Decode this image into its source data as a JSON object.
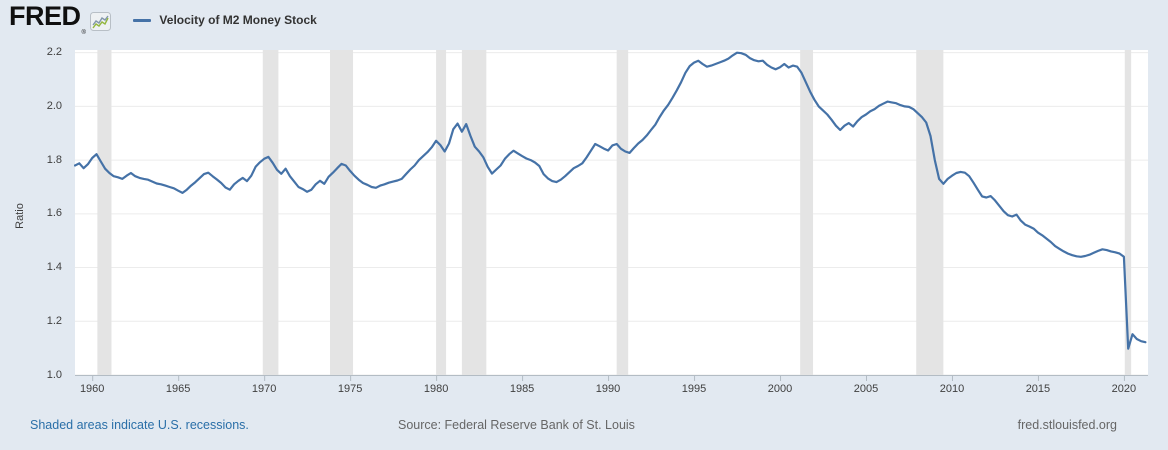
{
  "header": {
    "logo_text": "FRED",
    "registered_mark": "®",
    "legend_label": "Velocity of M2 Money Stock"
  },
  "footer": {
    "recession_note": "Shaded areas indicate U.S. recessions.",
    "source_text": "Source: Federal Reserve Bank of St. Louis",
    "site_url": "fred.stlouisfed.org"
  },
  "chart_data": {
    "type": "line",
    "title": "Velocity of M2 Money Stock",
    "xlabel": "",
    "ylabel": "Ratio",
    "series_name": "Velocity of M2 Money Stock",
    "grid": "horizontal",
    "legend_position": "top-left",
    "xlim": [
      1959.0,
      2021.4
    ],
    "ylim": [
      1.0,
      2.21
    ],
    "x_ticks": [
      {
        "v": 1960,
        "label": "1960"
      },
      {
        "v": 1965,
        "label": "1965"
      },
      {
        "v": 1970,
        "label": "1970"
      },
      {
        "v": 1975,
        "label": "1975"
      },
      {
        "v": 1980,
        "label": "1980"
      },
      {
        "v": 1985,
        "label": "1985"
      },
      {
        "v": 1990,
        "label": "1990"
      },
      {
        "v": 1995,
        "label": "1995"
      },
      {
        "v": 2000,
        "label": "2000"
      },
      {
        "v": 2005,
        "label": "2005"
      },
      {
        "v": 2010,
        "label": "2010"
      },
      {
        "v": 2015,
        "label": "2015"
      },
      {
        "v": 2020,
        "label": "2020"
      }
    ],
    "y_ticks": [
      {
        "v": 1.0,
        "label": "1.0"
      },
      {
        "v": 1.2,
        "label": "1.2"
      },
      {
        "v": 1.4,
        "label": "1.4"
      },
      {
        "v": 1.6,
        "label": "1.6"
      },
      {
        "v": 1.8,
        "label": "1.8"
      },
      {
        "v": 2.0,
        "label": "2.0"
      },
      {
        "v": 2.2,
        "label": "2.2"
      }
    ],
    "recessions": [
      [
        1960.3,
        1961.12
      ],
      [
        1969.92,
        1970.83
      ],
      [
        1973.83,
        1975.17
      ],
      [
        1980.0,
        1980.58
      ],
      [
        1981.5,
        1982.92
      ],
      [
        1990.5,
        1991.17
      ],
      [
        2001.17,
        2001.92
      ],
      [
        2007.92,
        2009.5
      ],
      [
        2020.05,
        2020.42
      ]
    ],
    "colors": {
      "line": "#4572a7",
      "plot_bg": "#ffffff",
      "recession_band": "#e4e4e4",
      "gridline": "#ececec",
      "axis": "#b3bcc4",
      "canvas_bg": "#e2e9f1",
      "link": "#2a6fa8",
      "muted_text": "#666666"
    },
    "points": [
      [
        1959.0,
        1.78
      ],
      [
        1959.25,
        1.788
      ],
      [
        1959.5,
        1.77
      ],
      [
        1959.75,
        1.785
      ],
      [
        1960.0,
        1.808
      ],
      [
        1960.25,
        1.822
      ],
      [
        1960.5,
        1.795
      ],
      [
        1960.75,
        1.768
      ],
      [
        1961.0,
        1.752
      ],
      [
        1961.25,
        1.74
      ],
      [
        1961.5,
        1.736
      ],
      [
        1961.75,
        1.73
      ],
      [
        1962.0,
        1.742
      ],
      [
        1962.25,
        1.752
      ],
      [
        1962.5,
        1.74
      ],
      [
        1962.75,
        1.734
      ],
      [
        1963.0,
        1.73
      ],
      [
        1963.25,
        1.727
      ],
      [
        1963.5,
        1.72
      ],
      [
        1963.75,
        1.713
      ],
      [
        1964.0,
        1.71
      ],
      [
        1964.25,
        1.705
      ],
      [
        1964.5,
        1.7
      ],
      [
        1964.75,
        1.695
      ],
      [
        1965.0,
        1.686
      ],
      [
        1965.25,
        1.678
      ],
      [
        1965.5,
        1.69
      ],
      [
        1965.75,
        1.705
      ],
      [
        1966.0,
        1.718
      ],
      [
        1966.25,
        1.733
      ],
      [
        1966.5,
        1.748
      ],
      [
        1966.75,
        1.753
      ],
      [
        1967.0,
        1.74
      ],
      [
        1967.25,
        1.728
      ],
      [
        1967.5,
        1.715
      ],
      [
        1967.75,
        1.698
      ],
      [
        1968.0,
        1.69
      ],
      [
        1968.25,
        1.71
      ],
      [
        1968.5,
        1.723
      ],
      [
        1968.75,
        1.734
      ],
      [
        1969.0,
        1.722
      ],
      [
        1969.25,
        1.742
      ],
      [
        1969.5,
        1.775
      ],
      [
        1969.75,
        1.792
      ],
      [
        1970.0,
        1.805
      ],
      [
        1970.25,
        1.812
      ],
      [
        1970.5,
        1.79
      ],
      [
        1970.75,
        1.764
      ],
      [
        1971.0,
        1.749
      ],
      [
        1971.25,
        1.768
      ],
      [
        1971.5,
        1.74
      ],
      [
        1971.75,
        1.72
      ],
      [
        1972.0,
        1.7
      ],
      [
        1972.25,
        1.692
      ],
      [
        1972.5,
        1.682
      ],
      [
        1972.75,
        1.69
      ],
      [
        1973.0,
        1.71
      ],
      [
        1973.25,
        1.723
      ],
      [
        1973.5,
        1.712
      ],
      [
        1973.75,
        1.738
      ],
      [
        1974.0,
        1.753
      ],
      [
        1974.25,
        1.77
      ],
      [
        1974.5,
        1.786
      ],
      [
        1974.75,
        1.78
      ],
      [
        1975.0,
        1.76
      ],
      [
        1975.25,
        1.742
      ],
      [
        1975.5,
        1.727
      ],
      [
        1975.75,
        1.715
      ],
      [
        1976.0,
        1.708
      ],
      [
        1976.25,
        1.7
      ],
      [
        1976.5,
        1.697
      ],
      [
        1976.75,
        1.705
      ],
      [
        1977.0,
        1.71
      ],
      [
        1977.25,
        1.716
      ],
      [
        1977.5,
        1.72
      ],
      [
        1977.75,
        1.724
      ],
      [
        1978.0,
        1.73
      ],
      [
        1978.25,
        1.748
      ],
      [
        1978.5,
        1.765
      ],
      [
        1978.75,
        1.78
      ],
      [
        1979.0,
        1.8
      ],
      [
        1979.25,
        1.815
      ],
      [
        1979.5,
        1.83
      ],
      [
        1979.75,
        1.848
      ],
      [
        1980.0,
        1.872
      ],
      [
        1980.25,
        1.856
      ],
      [
        1980.5,
        1.832
      ],
      [
        1980.75,
        1.862
      ],
      [
        1981.0,
        1.915
      ],
      [
        1981.25,
        1.936
      ],
      [
        1981.5,
        1.906
      ],
      [
        1981.75,
        1.934
      ],
      [
        1982.0,
        1.89
      ],
      [
        1982.25,
        1.85
      ],
      [
        1982.5,
        1.832
      ],
      [
        1982.75,
        1.81
      ],
      [
        1983.0,
        1.775
      ],
      [
        1983.25,
        1.75
      ],
      [
        1983.5,
        1.765
      ],
      [
        1983.75,
        1.78
      ],
      [
        1984.0,
        1.805
      ],
      [
        1984.25,
        1.822
      ],
      [
        1984.5,
        1.835
      ],
      [
        1984.75,
        1.825
      ],
      [
        1985.0,
        1.815
      ],
      [
        1985.25,
        1.806
      ],
      [
        1985.5,
        1.8
      ],
      [
        1985.75,
        1.791
      ],
      [
        1986.0,
        1.778
      ],
      [
        1986.25,
        1.748
      ],
      [
        1986.5,
        1.732
      ],
      [
        1986.75,
        1.722
      ],
      [
        1987.0,
        1.718
      ],
      [
        1987.25,
        1.727
      ],
      [
        1987.5,
        1.74
      ],
      [
        1987.75,
        1.755
      ],
      [
        1988.0,
        1.77
      ],
      [
        1988.25,
        1.778
      ],
      [
        1988.5,
        1.788
      ],
      [
        1988.75,
        1.81
      ],
      [
        1989.0,
        1.835
      ],
      [
        1989.25,
        1.86
      ],
      [
        1989.5,
        1.852
      ],
      [
        1989.75,
        1.843
      ],
      [
        1990.0,
        1.836
      ],
      [
        1990.25,
        1.855
      ],
      [
        1990.5,
        1.86
      ],
      [
        1990.75,
        1.842
      ],
      [
        1991.0,
        1.832
      ],
      [
        1991.25,
        1.827
      ],
      [
        1991.5,
        1.845
      ],
      [
        1991.75,
        1.862
      ],
      [
        1992.0,
        1.875
      ],
      [
        1992.25,
        1.892
      ],
      [
        1992.5,
        1.912
      ],
      [
        1992.75,
        1.932
      ],
      [
        1993.0,
        1.96
      ],
      [
        1993.25,
        1.985
      ],
      [
        1993.5,
        2.006
      ],
      [
        1993.75,
        2.032
      ],
      [
        1994.0,
        2.06
      ],
      [
        1994.25,
        2.09
      ],
      [
        1994.5,
        2.125
      ],
      [
        1994.75,
        2.15
      ],
      [
        1995.0,
        2.163
      ],
      [
        1995.25,
        2.17
      ],
      [
        1995.5,
        2.158
      ],
      [
        1995.75,
        2.148
      ],
      [
        1996.0,
        2.152
      ],
      [
        1996.25,
        2.158
      ],
      [
        1996.5,
        2.164
      ],
      [
        1996.75,
        2.17
      ],
      [
        1997.0,
        2.178
      ],
      [
        1997.25,
        2.19
      ],
      [
        1997.5,
        2.2
      ],
      [
        1997.75,
        2.198
      ],
      [
        1998.0,
        2.192
      ],
      [
        1998.25,
        2.18
      ],
      [
        1998.5,
        2.172
      ],
      [
        1998.75,
        2.168
      ],
      [
        1999.0,
        2.17
      ],
      [
        1999.25,
        2.155
      ],
      [
        1999.5,
        2.145
      ],
      [
        1999.75,
        2.138
      ],
      [
        2000.0,
        2.146
      ],
      [
        2000.25,
        2.158
      ],
      [
        2000.5,
        2.145
      ],
      [
        2000.75,
        2.152
      ],
      [
        2001.0,
        2.148
      ],
      [
        2001.25,
        2.125
      ],
      [
        2001.5,
        2.09
      ],
      [
        2001.75,
        2.055
      ],
      [
        2002.0,
        2.025
      ],
      [
        2002.25,
        2.0
      ],
      [
        2002.5,
        1.985
      ],
      [
        2002.75,
        1.97
      ],
      [
        2003.0,
        1.95
      ],
      [
        2003.25,
        1.928
      ],
      [
        2003.5,
        1.912
      ],
      [
        2003.75,
        1.928
      ],
      [
        2004.0,
        1.938
      ],
      [
        2004.25,
        1.925
      ],
      [
        2004.5,
        1.945
      ],
      [
        2004.75,
        1.96
      ],
      [
        2005.0,
        1.97
      ],
      [
        2005.25,
        1.982
      ],
      [
        2005.5,
        1.99
      ],
      [
        2005.75,
        2.002
      ],
      [
        2006.0,
        2.01
      ],
      [
        2006.25,
        2.018
      ],
      [
        2006.5,
        2.015
      ],
      [
        2006.75,
        2.012
      ],
      [
        2007.0,
        2.005
      ],
      [
        2007.25,
        2.0
      ],
      [
        2007.5,
        1.998
      ],
      [
        2007.75,
        1.99
      ],
      [
        2008.0,
        1.975
      ],
      [
        2008.25,
        1.96
      ],
      [
        2008.5,
        1.94
      ],
      [
        2008.75,
        1.89
      ],
      [
        2009.0,
        1.8
      ],
      [
        2009.25,
        1.73
      ],
      [
        2009.5,
        1.712
      ],
      [
        2009.75,
        1.73
      ],
      [
        2010.0,
        1.742
      ],
      [
        2010.25,
        1.752
      ],
      [
        2010.5,
        1.756
      ],
      [
        2010.75,
        1.753
      ],
      [
        2011.0,
        1.74
      ],
      [
        2011.25,
        1.716
      ],
      [
        2011.5,
        1.69
      ],
      [
        2011.75,
        1.665
      ],
      [
        2012.0,
        1.661
      ],
      [
        2012.25,
        1.666
      ],
      [
        2012.5,
        1.65
      ],
      [
        2012.75,
        1.63
      ],
      [
        2013.0,
        1.61
      ],
      [
        2013.25,
        1.595
      ],
      [
        2013.5,
        1.59
      ],
      [
        2013.75,
        1.597
      ],
      [
        2014.0,
        1.575
      ],
      [
        2014.25,
        1.56
      ],
      [
        2014.5,
        1.553
      ],
      [
        2014.75,
        1.545
      ],
      [
        2015.0,
        1.53
      ],
      [
        2015.25,
        1.52
      ],
      [
        2015.5,
        1.508
      ],
      [
        2015.75,
        1.495
      ],
      [
        2016.0,
        1.48
      ],
      [
        2016.25,
        1.47
      ],
      [
        2016.5,
        1.46
      ],
      [
        2016.75,
        1.452
      ],
      [
        2017.0,
        1.446
      ],
      [
        2017.25,
        1.442
      ],
      [
        2017.5,
        1.44
      ],
      [
        2017.75,
        1.443
      ],
      [
        2018.0,
        1.448
      ],
      [
        2018.25,
        1.455
      ],
      [
        2018.5,
        1.462
      ],
      [
        2018.75,
        1.468
      ],
      [
        2019.0,
        1.465
      ],
      [
        2019.25,
        1.46
      ],
      [
        2019.5,
        1.457
      ],
      [
        2019.75,
        1.452
      ],
      [
        2020.0,
        1.44
      ],
      [
        2020.25,
        1.098
      ],
      [
        2020.5,
        1.152
      ],
      [
        2020.75,
        1.134
      ],
      [
        2021.0,
        1.126
      ],
      [
        2021.25,
        1.122
      ]
    ]
  }
}
